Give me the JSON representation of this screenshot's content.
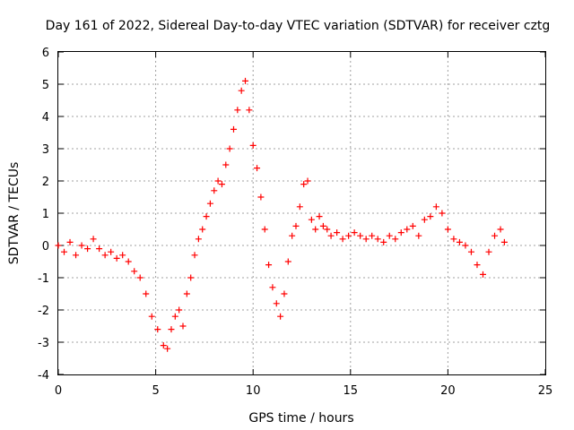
{
  "chart_data": {
    "type": "scatter",
    "title": "Day 161 of 2022, Sidereal Day-to-day VTEC variation (SDTVAR) for receiver cztg",
    "xlabel": "GPS time / hours",
    "ylabel": "SDTVAR / TECUs",
    "xlim": [
      0,
      25
    ],
    "ylim": [
      -4,
      6
    ],
    "xticks": [
      0,
      5,
      10,
      15,
      20,
      25
    ],
    "yticks": [
      -4,
      -3,
      -2,
      -1,
      0,
      1,
      2,
      3,
      4,
      5,
      6
    ],
    "grid": true,
    "marker": "+",
    "series": [
      {
        "name": "SDTVAR",
        "color": "#ff0000",
        "x": [
          0.0,
          0.3,
          0.6,
          0.9,
          1.2,
          1.5,
          1.8,
          2.1,
          2.4,
          2.7,
          3.0,
          3.3,
          3.6,
          3.9,
          4.2,
          4.5,
          4.8,
          5.1,
          5.4,
          5.6,
          5.8,
          6.0,
          6.2,
          6.4,
          6.6,
          6.8,
          7.0,
          7.2,
          7.4,
          7.6,
          7.8,
          8.0,
          8.2,
          8.4,
          8.6,
          8.8,
          9.0,
          9.2,
          9.4,
          9.6,
          9.8,
          10.0,
          10.2,
          10.4,
          10.6,
          10.8,
          11.0,
          11.2,
          11.4,
          11.6,
          11.8,
          12.0,
          12.2,
          12.4,
          12.6,
          12.8,
          13.0,
          13.2,
          13.4,
          13.6,
          13.8,
          14.0,
          14.3,
          14.6,
          14.9,
          15.2,
          15.5,
          15.8,
          16.1,
          16.4,
          16.7,
          17.0,
          17.3,
          17.6,
          17.9,
          18.2,
          18.5,
          18.8,
          19.1,
          19.4,
          19.7,
          20.0,
          20.3,
          20.6,
          20.9,
          21.2,
          21.5,
          21.8,
          22.1,
          22.4,
          22.7,
          22.9
        ],
        "y": [
          0.0,
          -0.2,
          0.1,
          -0.3,
          0.0,
          -0.1,
          0.2,
          -0.1,
          -0.3,
          -0.2,
          -0.4,
          -0.3,
          -0.5,
          -0.8,
          -1.0,
          -1.5,
          -2.2,
          -2.6,
          -3.1,
          -3.2,
          -2.6,
          -2.2,
          -2.0,
          -2.5,
          -1.5,
          -1.0,
          -0.3,
          0.2,
          0.5,
          0.9,
          1.3,
          1.7,
          2.0,
          1.9,
          2.5,
          3.0,
          3.6,
          4.2,
          4.8,
          5.1,
          4.2,
          3.1,
          2.4,
          1.5,
          0.5,
          -0.6,
          -1.3,
          -1.8,
          -2.2,
          -1.5,
          -0.5,
          0.3,
          0.6,
          1.2,
          1.9,
          2.0,
          0.8,
          0.5,
          0.9,
          0.6,
          0.5,
          0.3,
          0.4,
          0.2,
          0.3,
          0.4,
          0.3,
          0.2,
          0.3,
          0.2,
          0.1,
          0.3,
          0.2,
          0.4,
          0.5,
          0.6,
          0.3,
          0.8,
          0.9,
          1.2,
          1.0,
          0.5,
          0.2,
          0.1,
          0.0,
          -0.2,
          -0.6,
          -0.9,
          -0.2,
          0.3,
          0.5,
          0.1
        ]
      }
    ]
  }
}
